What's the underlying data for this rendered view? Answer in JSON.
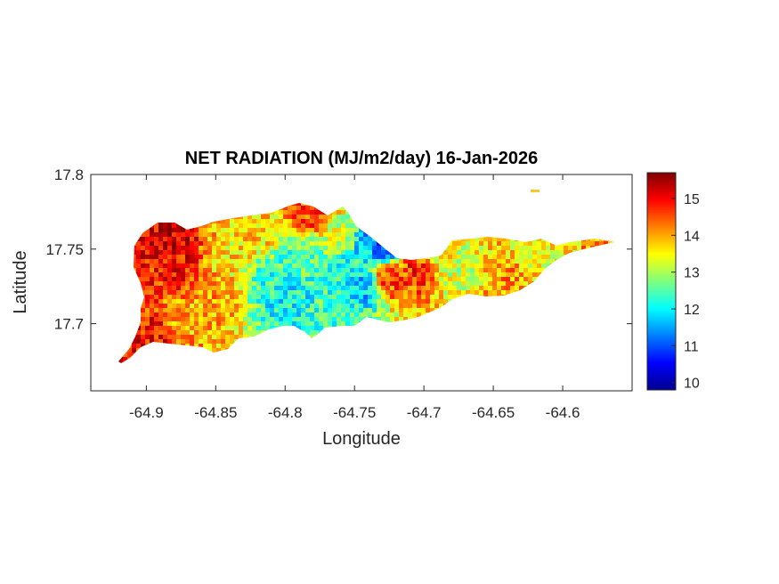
{
  "chart_data": {
    "type": "heatmap",
    "title": "NET RADIATION (MJ/m2/day) 16-Jan-2026",
    "xlabel": "Longitude",
    "ylabel": "Latitude",
    "xlim": [
      -64.94,
      -64.55
    ],
    "ylim": [
      17.655,
      17.8
    ],
    "xticks": [
      -64.9,
      -64.85,
      -64.8,
      -64.75,
      -64.7,
      -64.65,
      -64.6
    ],
    "xtick_labels": [
      "-64.9",
      "-64.85",
      "-64.8",
      "-64.75",
      "-64.7",
      "-64.65",
      "-64.6"
    ],
    "yticks": [
      17.7,
      17.75,
      17.8
    ],
    "ytick_labels": [
      "17.7",
      "17.75",
      "17.8"
    ],
    "colorbar": {
      "colormap": "jet",
      "range": [
        9.8,
        15.7
      ],
      "ticks": [
        10,
        11,
        12,
        13,
        14,
        15
      ],
      "tick_labels": [
        "10",
        "11",
        "12",
        "13",
        "14",
        "15"
      ]
    },
    "grid": false,
    "region_values": [
      {
        "lon": -64.88,
        "lat": 17.755,
        "value": 15.2
      },
      {
        "lon": -64.88,
        "lat": 17.735,
        "value": 14.8
      },
      {
        "lon": -64.895,
        "lat": 17.69,
        "value": 14.9
      },
      {
        "lon": -64.87,
        "lat": 17.705,
        "value": 13.9
      },
      {
        "lon": -64.85,
        "lat": 17.72,
        "value": 14.0
      },
      {
        "lon": -64.84,
        "lat": 17.745,
        "value": 13.6
      },
      {
        "lon": -64.82,
        "lat": 17.76,
        "value": 13.7
      },
      {
        "lon": -64.81,
        "lat": 17.73,
        "value": 12.3
      },
      {
        "lon": -64.8,
        "lat": 17.72,
        "value": 12.0
      },
      {
        "lon": -64.79,
        "lat": 17.745,
        "value": 12.5
      },
      {
        "lon": -64.78,
        "lat": 17.775,
        "value": 14.6
      },
      {
        "lon": -64.76,
        "lat": 17.76,
        "value": 13.2
      },
      {
        "lon": -64.755,
        "lat": 17.735,
        "value": 12.2
      },
      {
        "lon": -64.745,
        "lat": 17.725,
        "value": 11.6
      },
      {
        "lon": -64.74,
        "lat": 17.755,
        "value": 11.7
      },
      {
        "lon": -64.73,
        "lat": 17.752,
        "value": 10.9
      },
      {
        "lon": -64.76,
        "lat": 17.71,
        "value": 12.4
      },
      {
        "lon": -64.725,
        "lat": 17.73,
        "value": 14.5
      },
      {
        "lon": -64.705,
        "lat": 17.735,
        "value": 14.7
      },
      {
        "lon": -64.69,
        "lat": 17.745,
        "value": 13.6
      },
      {
        "lon": -64.675,
        "lat": 17.735,
        "value": 13.2
      },
      {
        "lon": -64.67,
        "lat": 17.755,
        "value": 13.3
      },
      {
        "lon": -64.65,
        "lat": 17.745,
        "value": 13.8
      },
      {
        "lon": -64.64,
        "lat": 17.73,
        "value": 14.1
      },
      {
        "lon": -64.62,
        "lat": 17.748,
        "value": 13.4
      },
      {
        "lon": -64.6,
        "lat": 17.75,
        "value": 13.5
      },
      {
        "lon": -64.575,
        "lat": 17.755,
        "value": 14.2
      },
      {
        "lon": -64.625,
        "lat": 17.788,
        "value": 14.0
      }
    ]
  }
}
